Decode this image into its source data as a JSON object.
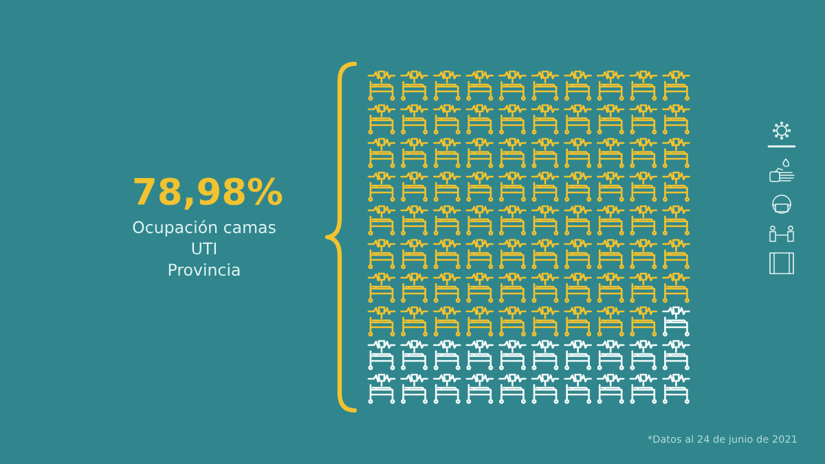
{
  "chart_data": {
    "type": "other",
    "categories": [
      "Ocupación camas\nUTI\nProvincia"
    ],
    "values": [
      78.98
    ],
    "value_labels": [
      "78,98%"
    ],
    "colors": [
      "#f2c230"
    ],
    "annotations": [
      "*Datos al 24 de junio de 2021"
    ]
  }
}
